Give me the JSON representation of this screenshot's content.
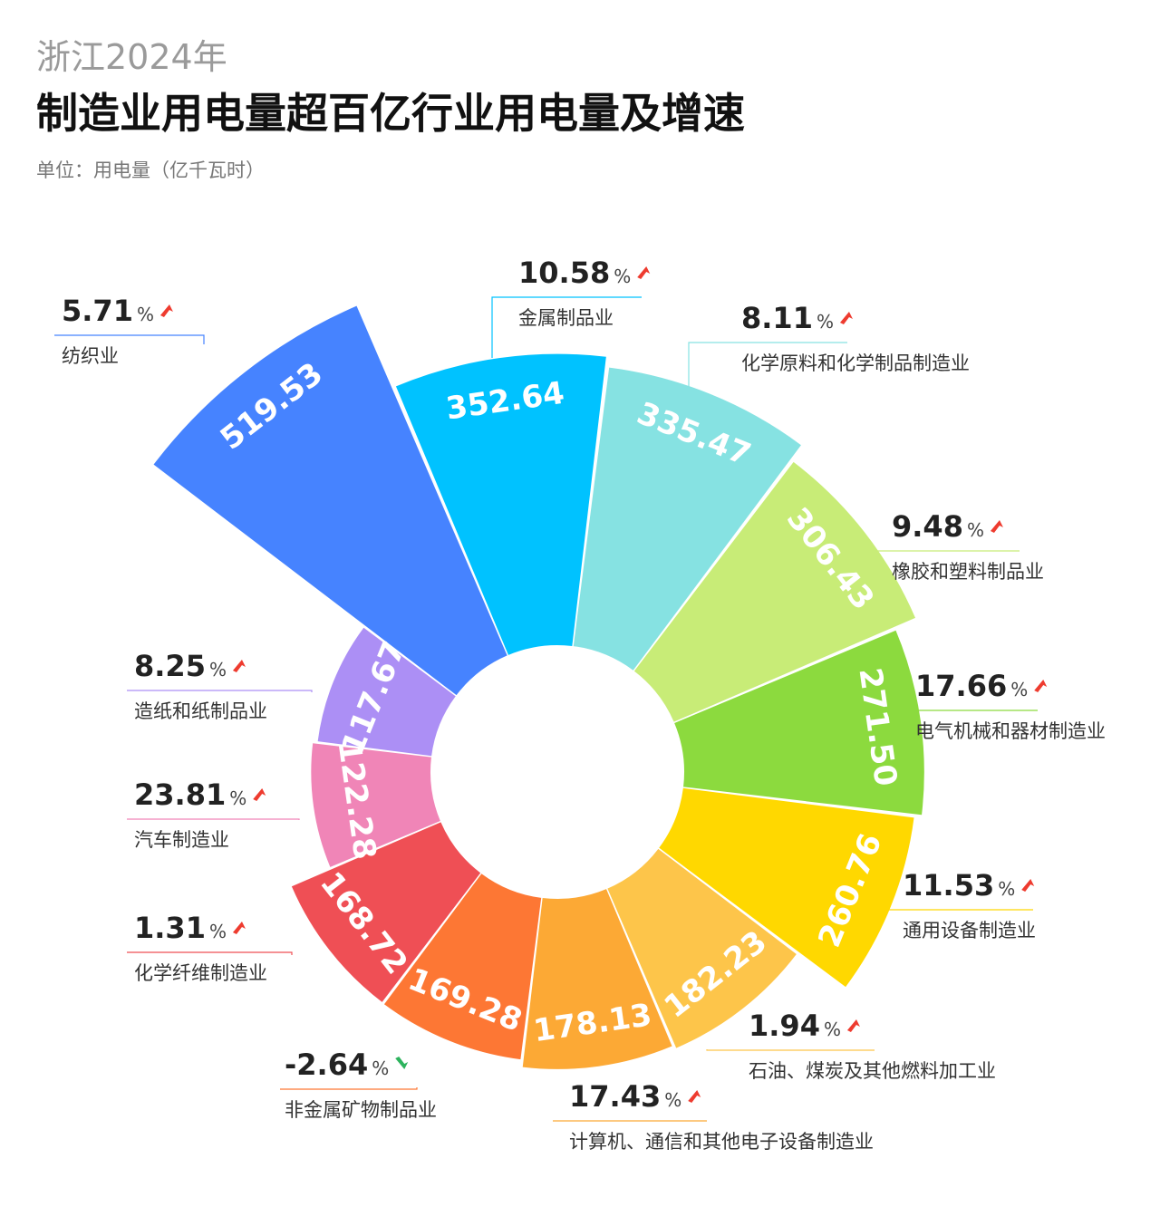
{
  "header": {
    "subtitle": "浙江2024年",
    "title": "制造业用电量超百亿行业用电量及增速",
    "unit": "单位：用电量（亿千瓦时）"
  },
  "chart_data": {
    "type": "pie",
    "variant": "rose",
    "colors": {
      "up_arrow": "#ee3b2f",
      "down_arrow": "#2db35d",
      "label_line": "#c8c8c8"
    },
    "series": [
      {
        "name": "纺织业",
        "value": 519.53,
        "growth": "5.71",
        "trend": "up",
        "color": "#4683ff"
      },
      {
        "name": "金属制品业",
        "value": 352.64,
        "growth": "10.58",
        "trend": "up",
        "color": "#00c2ff"
      },
      {
        "name": "化学原料和化学制品制造业",
        "value": 335.47,
        "growth": "8.11",
        "trend": "up",
        "color": "#86e2e2"
      },
      {
        "name": "橡胶和塑料制品业",
        "value": 306.43,
        "growth": "9.48",
        "trend": "up",
        "color": "#c8ec77"
      },
      {
        "name": "电气机械和器材制造业",
        "value": 271.5,
        "growth": "17.66",
        "trend": "up",
        "color": "#8cda3e"
      },
      {
        "name": "通用设备制造业",
        "value": 260.76,
        "growth": "11.53",
        "trend": "up",
        "color": "#ffd800"
      },
      {
        "name": "石油、煤炭及其他燃料加工业",
        "value": 182.23,
        "growth": "1.94",
        "trend": "up",
        "color": "#fdc54a"
      },
      {
        "name": "计算机、通信和其他电子设备制造业",
        "value": 178.13,
        "growth": "17.43",
        "trend": "up",
        "color": "#fca935"
      },
      {
        "name": "非金属矿物制品业",
        "value": 169.28,
        "growth": "-2.64",
        "trend": "down",
        "color": "#fd7734"
      },
      {
        "name": "化学纤维制造业",
        "value": 168.72,
        "growth": "1.31",
        "trend": "up",
        "color": "#ef4f55"
      },
      {
        "name": "汽车制造业",
        "value": 122.28,
        "growth": "23.81",
        "trend": "up",
        "color": "#f085b7"
      },
      {
        "name": "造纸和纸制品业",
        "value": 117.67,
        "growth": "8.25",
        "trend": "up",
        "color": "#ac8ff5"
      }
    ],
    "value_labels": [
      "519.53",
      "352.64",
      "335.47",
      "306.43",
      "271.50",
      "260.76",
      "182.23",
      "178.13",
      "169.28",
      "168.72",
      "122.28",
      "117.67"
    ],
    "percent_sign": "%"
  }
}
